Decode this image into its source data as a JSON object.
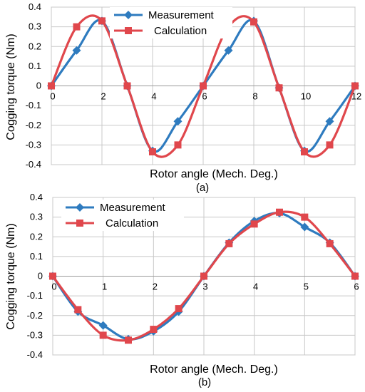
{
  "chart_data": [
    {
      "type": "line",
      "caption": "(a)",
      "xlabel": "Rotor angle (Mech. Deg.)",
      "ylabel": "Cogging torque (Nm)",
      "xlim": [
        0,
        12
      ],
      "ylim": [
        -0.4,
        0.4
      ],
      "xticks": [
        0,
        2,
        4,
        6,
        8,
        10,
        12
      ],
      "yticks": [
        0.4,
        0.3,
        0.2,
        0.1,
        0,
        -0.1,
        -0.2,
        -0.3,
        -0.4
      ],
      "xtick_labels": [
        "0",
        "2",
        "4",
        "6",
        "8",
        "10",
        "12"
      ],
      "ytick_labels": [
        "0.4",
        "0.3",
        "0.2",
        "0.1",
        "0",
        "-0.1",
        "-0.2",
        "-0.3",
        "-0.4"
      ],
      "grid": true,
      "legend_position": "top-center",
      "series": [
        {
          "name": "Measurement",
          "color": "#2e7bbf",
          "marker": "diamond",
          "x": [
            0,
            1,
            2,
            3,
            4,
            5,
            6,
            7,
            8,
            9,
            10,
            11,
            12
          ],
          "y": [
            0,
            0.18,
            0.33,
            0,
            -0.33,
            -0.18,
            0,
            0.18,
            0.33,
            -0.01,
            -0.33,
            -0.18,
            0
          ]
        },
        {
          "name": "Calculation",
          "color": "#e0474c",
          "marker": "square",
          "x": [
            0,
            1,
            2,
            3,
            4,
            5,
            6,
            7,
            8,
            9,
            10,
            11,
            12
          ],
          "y": [
            0,
            0.3,
            0.33,
            0,
            -0.335,
            -0.3,
            0,
            0.3,
            0.325,
            -0.01,
            -0.335,
            -0.3,
            0
          ]
        }
      ]
    },
    {
      "type": "line",
      "caption": "(b)",
      "xlabel": "Rotor angle (Mech. Deg.)",
      "ylabel": "Cogging torque (Nm)",
      "xlim": [
        0,
        6
      ],
      "ylim": [
        -0.4,
        0.4
      ],
      "xticks": [
        0,
        1,
        2,
        3,
        4,
        5,
        6
      ],
      "yticks": [
        0.4,
        0.3,
        0.2,
        0.1,
        0,
        -0.1,
        -0.2,
        -0.3,
        -0.4
      ],
      "xtick_labels": [
        "0",
        "1",
        "2",
        "3",
        "4",
        "5",
        "6"
      ],
      "ytick_labels": [
        "0.4",
        "0.3",
        "0.2",
        "0.1",
        "0",
        "-0.1",
        "-0.2",
        "-0.3",
        "-0.4"
      ],
      "grid": true,
      "legend_position": "top-left",
      "series": [
        {
          "name": "Measurement",
          "color": "#2e7bbf",
          "marker": "diamond",
          "x": [
            0,
            0.5,
            1,
            1.5,
            2,
            2.5,
            3,
            3.5,
            4,
            4.5,
            5,
            5.5,
            6
          ],
          "y": [
            0,
            -0.18,
            -0.25,
            -0.32,
            -0.28,
            -0.18,
            0,
            0.17,
            0.28,
            0.32,
            0.25,
            0.17,
            0
          ]
        },
        {
          "name": "Calculation",
          "color": "#e0474c",
          "marker": "square",
          "x": [
            0,
            0.5,
            1,
            1.5,
            2,
            2.5,
            3,
            3.5,
            4,
            4.5,
            5,
            5.5,
            6
          ],
          "y": [
            0,
            -0.17,
            -0.3,
            -0.325,
            -0.27,
            -0.165,
            0,
            0.165,
            0.265,
            0.325,
            0.3,
            0.165,
            0
          ]
        }
      ]
    }
  ]
}
